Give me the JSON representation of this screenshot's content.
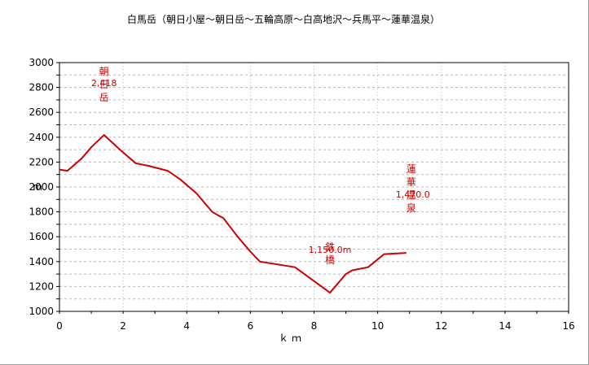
{
  "chart_data": {
    "type": "line",
    "title": "白馬岳（朝日小屋～朝日岳～五輪高原～白高地沢～兵馬平～蓮華温泉）",
    "xlabel": "ｋｍ",
    "ylabel": "m",
    "xlim": [
      0,
      16
    ],
    "ylim": [
      1000,
      3000
    ],
    "xticks": [
      "0",
      "2",
      "4",
      "6",
      "8",
      "10",
      "12",
      "14",
      "16"
    ],
    "yticks": [
      "1000",
      "1200",
      "1400",
      "1600",
      "1800",
      "2000",
      "2200",
      "2400",
      "2600",
      "2800",
      "3000"
    ],
    "grid": true,
    "line_color": "#cc0000",
    "series": [
      {
        "x": [
          0.0,
          0.25,
          0.7,
          1.0,
          1.4,
          1.9,
          2.4,
          2.8,
          3.4,
          3.8,
          4.3,
          4.8,
          5.0,
          5.15,
          5.6,
          6.0,
          6.3,
          7.4,
          8.5,
          9.0,
          9.2,
          9.7,
          10.2,
          10.9
        ],
        "y": [
          2140,
          2130,
          2230,
          2320,
          2418,
          2300,
          2190,
          2170,
          2130,
          2060,
          1950,
          1800,
          1770,
          1750,
          1600,
          1480,
          1400,
          1355,
          1150,
          1300,
          1330,
          1355,
          1460,
          1470
        ]
      }
    ],
    "annotations": [
      {
        "text": "2,418",
        "x": 1.4,
        "y": 2418
      },
      {
        "text": "朝日岳",
        "x": 1.4,
        "y": 2418,
        "vertical": true
      },
      {
        "text": "1,150.0m",
        "x": 8.5,
        "y": 1150
      },
      {
        "text": "鉄橋",
        "x": 8.5,
        "y": 1150,
        "vertical": true
      },
      {
        "text": "1,470.0",
        "x": 10.9,
        "y": 1470
      },
      {
        "text": "蓮華温泉",
        "x": 10.9,
        "y": 1470,
        "vertical": true
      }
    ]
  }
}
